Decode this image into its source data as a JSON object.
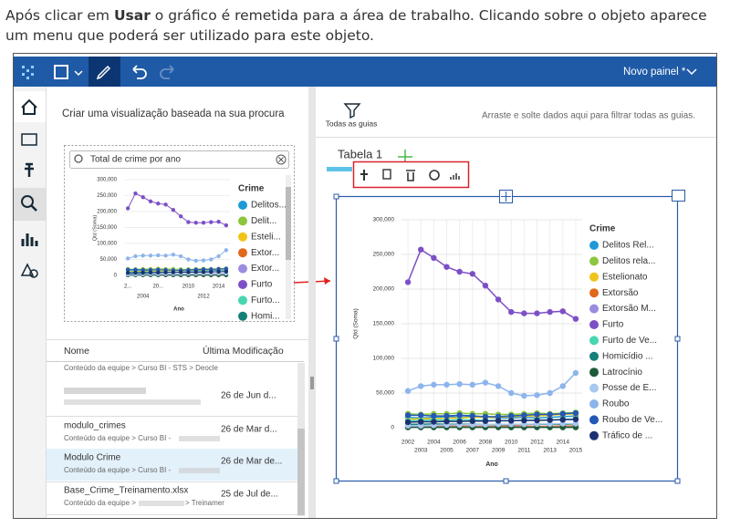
{
  "instruction": {
    "before": "Após clicar em ",
    "bold": "Usar",
    "after": " o gráfico é remetida para a área de trabalho.  Clicando sobre o objeto aparece um menu que poderá ser utilizado para este objeto."
  },
  "header": {
    "dashboard_name": "Novo painel *"
  },
  "left_panel": {
    "heading": "Criar uma visualização baseada na sua procura",
    "search_text": "Total de crime por ano",
    "columns": [
      "Nome",
      "Última Modificação"
    ],
    "rows": [
      {
        "path": "Conteúdo da equipe > Curso BI - STS > Deocle"
      },
      {
        "date": "26 de Jun d..."
      },
      {
        "name": "modulo_crimes",
        "path": "Conteúdo da equipe > Curso BI -",
        "date": "26 de Mar d..."
      },
      {
        "name": "Modulo Crime",
        "path": "Conteúdo da equipe > Curso BI -",
        "date": "26 de Mar de...",
        "selected": true
      },
      {
        "name": "Base_Crime_Treinamento.xlsx",
        "path": "Conteúdo da equipe >",
        "path_end": "> Treinamer",
        "date": "25 de Jul de..."
      }
    ]
  },
  "filter_bar": {
    "button": "Todas as guias",
    "hint": "Arraste e solte dados aqui para filtrar todas as guias."
  },
  "tab": {
    "title": "Tabela 1"
  },
  "preview_chart": {
    "type": "line",
    "y_label": "Qtd (Soma)",
    "x_label": "Ano",
    "legend_title": "Crime",
    "legend": [
      "Delitos...",
      "Delit...",
      "Esteli...",
      "Extor...",
      "Extor...",
      "Furto",
      "Furto...",
      "Homi..."
    ],
    "ylim": [
      0,
      300000
    ],
    "yticks": [
      {
        "value": 0,
        "label": "0"
      },
      {
        "value": 50000,
        "label": "50,000"
      },
      {
        "value": 100000,
        "label": "100,000"
      },
      {
        "value": 150000,
        "label": "150,000"
      },
      {
        "value": 200000,
        "label": "200,000"
      },
      {
        "value": 250000,
        "label": "250,000"
      },
      {
        "value": 300000,
        "label": "300,000"
      }
    ],
    "xlim": [
      2001.5,
      2015.5
    ],
    "xticks_top": [
      {
        "value": 2002,
        "label": "2..."
      },
      {
        "value": 2006,
        "label": "20..."
      },
      2010,
      2014
    ],
    "xticks_bottom": [
      2004,
      2012
    ]
  },
  "main_chart": {
    "type": "line",
    "y_label": "Qtd (Soma)",
    "x_label": "Ano",
    "legend_title": "Crime",
    "grid": true,
    "x": [
      2002,
      2003,
      2004,
      2005,
      2006,
      2007,
      2008,
      2009,
      2010,
      2011,
      2012,
      2013,
      2014,
      2015
    ],
    "xlim": [
      2001.5,
      2015.5
    ],
    "xticks": [
      2002,
      2003,
      2004,
      2005,
      2006,
      2007,
      2008,
      2009,
      2010,
      2011,
      2012,
      2013,
      2014,
      2015
    ],
    "ylim": [
      0,
      300000
    ],
    "yticks": [
      {
        "value": 0,
        "label": "0"
      },
      {
        "value": 50000,
        "label": "50,000"
      },
      {
        "value": 100000,
        "label": "100,000"
      },
      {
        "value": 150000,
        "label": "150,000"
      },
      {
        "value": 200000,
        "label": "200,000"
      },
      {
        "value": 250000,
        "label": "250,000"
      },
      {
        "value": 300000,
        "label": "300,000"
      }
    ],
    "series": [
      {
        "name": "Delitos Rel...",
        "color": "#1f9ad6",
        "values": [
          15000,
          14000,
          15000,
          16000,
          15000,
          16000,
          15000,
          14000,
          14000,
          15000,
          14000,
          15000,
          16000,
          17000
        ]
      },
      {
        "name": "Delitos rela...",
        "color": "#8cc63e",
        "values": [
          20000,
          19000,
          20000,
          20000,
          21000,
          20000,
          20000,
          19000,
          19000,
          20000,
          21000,
          20000,
          21000,
          22000
        ]
      },
      {
        "name": "Estelionato",
        "color": "#f2c318",
        "values": [
          12000,
          13000,
          13000,
          14000,
          14000,
          15000,
          15000,
          15000,
          16000,
          17000,
          17000,
          18000,
          19000,
          20000
        ]
      },
      {
        "name": "Extorsão",
        "color": "#e0691b",
        "values": [
          2000,
          2000,
          2000,
          2500,
          2500,
          2000,
          2000,
          2000,
          2500,
          2500,
          2000,
          2000,
          2500,
          2500
        ]
      },
      {
        "name": "Extorsão M...",
        "color": "#9b8ce0",
        "values": [
          1000,
          1000,
          1000,
          1000,
          1000,
          1000,
          1000,
          1000,
          1000,
          1000,
          1000,
          1000,
          1000,
          1000
        ]
      },
      {
        "name": "Furto",
        "color": "#7d4fc6",
        "values": [
          210000,
          257000,
          245000,
          232000,
          225000,
          222000,
          205000,
          185000,
          167000,
          165000,
          165000,
          167000,
          168000,
          157000
        ]
      },
      {
        "name": "Furto de Ve...",
        "color": "#47d6b0",
        "values": [
          10000,
          10500,
          11000,
          11000,
          11500,
          11000,
          10500,
          10000,
          10000,
          10500,
          11000,
          11000,
          12000,
          12500
        ]
      },
      {
        "name": "Homicídio ...",
        "color": "#15807a",
        "values": [
          5000,
          5000,
          5500,
          5000,
          5000,
          5000,
          4500,
          4500,
          4500,
          5000,
          5000,
          5000,
          5000,
          5500
        ]
      },
      {
        "name": "Latrocínio",
        "color": "#1e5b3a",
        "values": [
          500,
          500,
          500,
          500,
          500,
          500,
          500,
          500,
          500,
          500,
          500,
          500,
          500,
          500
        ]
      },
      {
        "name": "Posse de E...",
        "color": "#a9c8f0",
        "values": [
          3000,
          3000,
          3500,
          4000,
          4000,
          4500,
          4500,
          5000,
          5000,
          5000,
          5500,
          5500,
          6000,
          6000
        ]
      },
      {
        "name": "Roubo",
        "color": "#8db4ec",
        "values": [
          53000,
          60000,
          62000,
          62000,
          63000,
          62000,
          65000,
          60000,
          50000,
          46000,
          47000,
          50000,
          60000,
          79000
        ]
      },
      {
        "name": "Roubo de Ve...",
        "color": "#2458b5",
        "values": [
          18000,
          18000,
          17000,
          17000,
          18000,
          17000,
          16000,
          16000,
          17000,
          18000,
          19000,
          19000,
          20000,
          21000
        ]
      },
      {
        "name": "Tráfico de ...",
        "color": "#1b3171",
        "values": [
          8000,
          8500,
          8500,
          9000,
          9000,
          9500,
          9500,
          10000,
          10000,
          10500,
          10500,
          11000,
          11500,
          12000
        ]
      }
    ]
  }
}
